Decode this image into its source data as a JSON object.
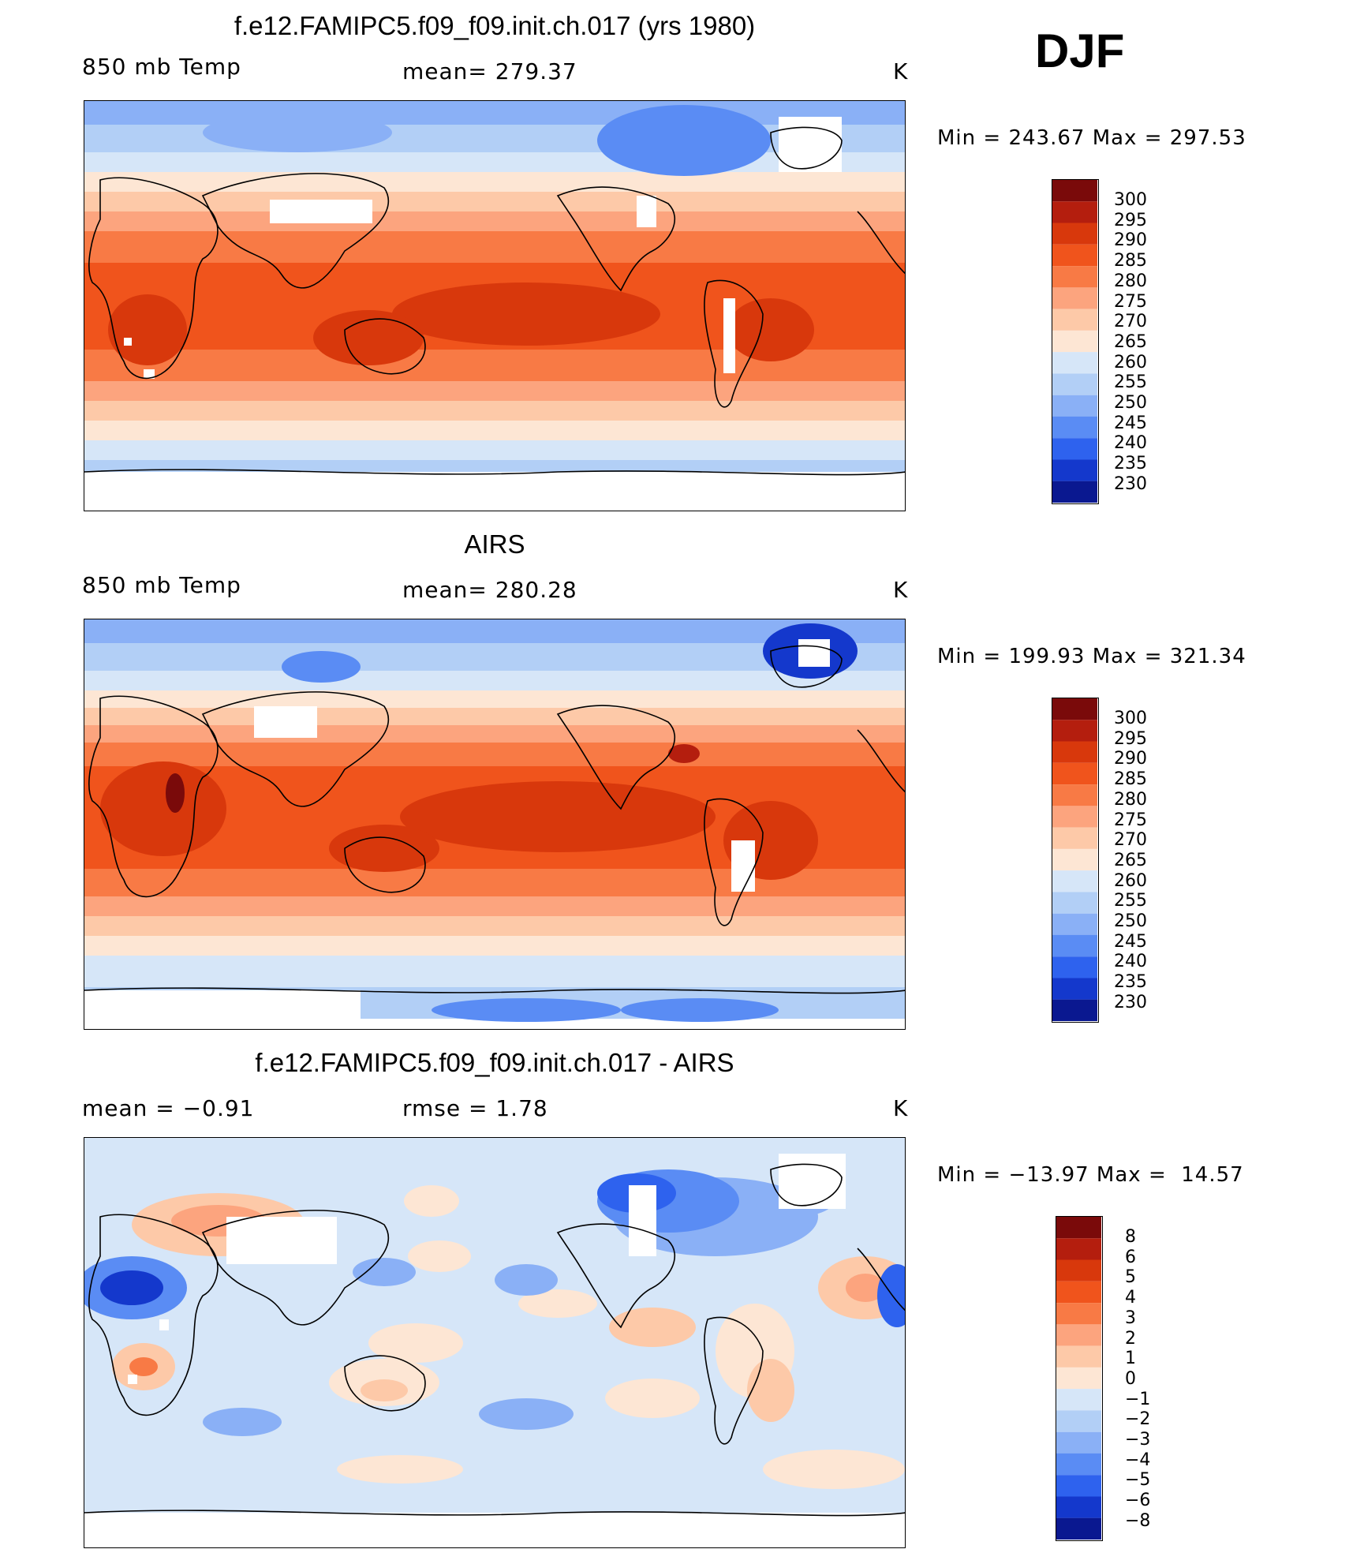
{
  "season": "DJF",
  "panels": [
    {
      "id": "model",
      "title": "f.e12.FAMIPC5.f09_f09.init.ch.017 (yrs 1980)",
      "left_label": "850 mb Temp",
      "center_label": "mean= 279.37",
      "units": "K",
      "minmax": "Min = 243.67 Max = 297.53",
      "colorbar_labels": [
        "300",
        "295",
        "290",
        "285",
        "280",
        "275",
        "270",
        "265",
        "260",
        "255",
        "250",
        "245",
        "240",
        "235",
        "230"
      ]
    },
    {
      "id": "obs",
      "title": "AIRS",
      "left_label": "850 mb Temp",
      "center_label": "mean= 280.28",
      "units": "K",
      "minmax": "Min = 199.93 Max = 321.34",
      "colorbar_labels": [
        "300",
        "295",
        "290",
        "285",
        "280",
        "275",
        "270",
        "265",
        "260",
        "255",
        "250",
        "245",
        "240",
        "235",
        "230"
      ]
    },
    {
      "id": "diff",
      "title": "f.e12.FAMIPC5.f09_f09.init.ch.017 - AIRS",
      "left_label": "mean =   −0.91",
      "center_label": "rmse =    1.78",
      "units": "K",
      "minmax": "Min = −13.97 Max =  14.57",
      "colorbar_labels": [
        "8",
        "6",
        "5",
        "4",
        "3",
        "2",
        "1",
        "0",
        "−1",
        "−2",
        "−3",
        "−4",
        "−5",
        "−6",
        "−8"
      ]
    }
  ],
  "colors": {
    "temp_scale": [
      "#7a0a0a",
      "#b41e0e",
      "#d8380c",
      "#f0541c",
      "#f87a45",
      "#fca47e",
      "#fdc9a8",
      "#fde6d4",
      "#d6e6f8",
      "#b2cff6",
      "#8ab0f6",
      "#5a8cf4",
      "#2e62ee",
      "#1438cc",
      "#0a1890"
    ],
    "diff_scale": [
      "#7a0a0a",
      "#b41e0e",
      "#d8380c",
      "#f0541c",
      "#f87a45",
      "#fca47e",
      "#fdc9a8",
      "#fde6d4",
      "#d6e6f8",
      "#b2cff6",
      "#8ab0f6",
      "#5a8cf4",
      "#2e62ee",
      "#1438cc",
      "#0a1890"
    ]
  }
}
